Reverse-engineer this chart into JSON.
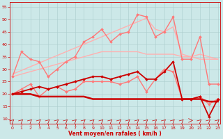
{
  "x": [
    0,
    1,
    2,
    3,
    4,
    5,
    6,
    7,
    8,
    9,
    10,
    11,
    12,
    13,
    14,
    15,
    16,
    17,
    18,
    19,
    20,
    21,
    22,
    23
  ],
  "series": [
    {
      "name": "trend_upper",
      "color": "#ffb0b0",
      "linewidth": 1.0,
      "marker": null,
      "markersize": 0,
      "values": [
        28,
        29.5,
        31,
        32.5,
        34,
        35.5,
        37,
        38.5,
        40,
        41.5,
        43,
        44.5,
        46,
        47.5,
        49,
        50.5,
        46,
        45,
        47,
        36,
        35,
        36,
        35,
        34
      ]
    },
    {
      "name": "trend_lower",
      "color": "#ffb0b0",
      "linewidth": 1.0,
      "marker": null,
      "markersize": 0,
      "values": [
        27,
        28,
        29,
        30,
        31,
        32,
        33,
        34,
        35,
        36,
        37,
        37,
        37,
        37,
        37,
        36,
        36,
        36,
        36,
        35,
        35,
        34,
        34,
        34
      ]
    },
    {
      "name": "gust_upper",
      "color": "#ff7777",
      "linewidth": 1.0,
      "marker": "D",
      "markersize": 2.0,
      "values": [
        27,
        37,
        34,
        33,
        27,
        30,
        33,
        35,
        41,
        43,
        46,
        41,
        44,
        45,
        52,
        51,
        43,
        45,
        51,
        34,
        34,
        43,
        24,
        24
      ]
    },
    {
      "name": "gust_lower",
      "color": "#ff7777",
      "linewidth": 1.0,
      "marker": "D",
      "markersize": 2.0,
      "values": [
        20,
        22,
        24,
        19,
        22,
        23,
        21,
        22,
        25,
        25,
        25,
        25,
        24,
        25,
        27,
        21,
        26,
        30,
        29,
        18,
        18,
        19,
        16,
        18
      ]
    },
    {
      "name": "mean_upper",
      "color": "#cc0000",
      "linewidth": 1.3,
      "marker": "D",
      "markersize": 2.0,
      "values": [
        20,
        21,
        22,
        23,
        22,
        23,
        24,
        25,
        26,
        27,
        27,
        26,
        27,
        28,
        29,
        26,
        26,
        29,
        33,
        18,
        18,
        19,
        11,
        18
      ]
    },
    {
      "name": "mean_flat",
      "color": "#cc0000",
      "linewidth": 1.8,
      "marker": null,
      "markersize": 0,
      "values": [
        20,
        20,
        20,
        19,
        19,
        19,
        19,
        19,
        19,
        18,
        18,
        18,
        18,
        18,
        18,
        18,
        18,
        18,
        18,
        18,
        18,
        18,
        17,
        17
      ]
    }
  ],
  "xlabel": "Vent moyen/en rafales ( km/h )",
  "xlim": [
    -0.3,
    23.3
  ],
  "ylim": [
    8,
    57
  ],
  "yticks": [
    10,
    15,
    20,
    25,
    30,
    35,
    40,
    45,
    50,
    55
  ],
  "xticks": [
    0,
    1,
    2,
    3,
    4,
    5,
    6,
    7,
    8,
    9,
    10,
    11,
    12,
    13,
    14,
    15,
    16,
    17,
    18,
    19,
    20,
    21,
    22,
    23
  ],
  "bg_color": "#cce8e8",
  "grid_color": "#aacccc",
  "axis_color": "#cc0000",
  "label_color": "#cc0000",
  "tick_color": "#cc0000",
  "arrow_directions": [
    1,
    1,
    1,
    1,
    1,
    1,
    1,
    1,
    1,
    1,
    1,
    1,
    1,
    1,
    1,
    1,
    1,
    1,
    1,
    1,
    0,
    1,
    1,
    1
  ]
}
